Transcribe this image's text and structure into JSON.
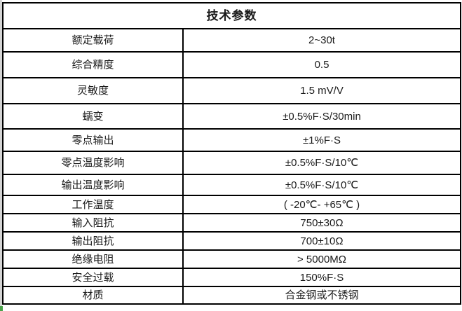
{
  "table": {
    "title": "技术参数",
    "rows": [
      {
        "label": "额定载荷",
        "value": "2~30t"
      },
      {
        "label": "综合精度",
        "value": "0.5"
      },
      {
        "label": "灵敏度",
        "value": "1.5 mV/V"
      },
      {
        "label": "蠕变",
        "value": "±0.5%F·S/30min"
      },
      {
        "label": "零点输出",
        "value": "±1%F·S"
      },
      {
        "label": "零点温度影响",
        "value": "±0.5%F·S/10℃"
      },
      {
        "label": "输出温度影响",
        "value": "±0.5%F·S/10℃"
      },
      {
        "label": "工作温度",
        "value": "( -20℃- +65℃ )"
      },
      {
        "label": "输入阻抗",
        "value": "750±30Ω"
      },
      {
        "label": "输出阻抗",
        "value": "700±10Ω"
      },
      {
        "label": "绝缘电阻",
        "value": "> 5000MΩ"
      },
      {
        "label": "安全过载",
        "value": "150%F·S"
      },
      {
        "label": "材质",
        "value": "合金钢或不锈钢"
      }
    ]
  },
  "colors": {
    "border": "#000000",
    "text": "#1a1a1a",
    "edge_strip_gray": "#d4d4d4",
    "selection_handle_green": "#4aa34a"
  }
}
